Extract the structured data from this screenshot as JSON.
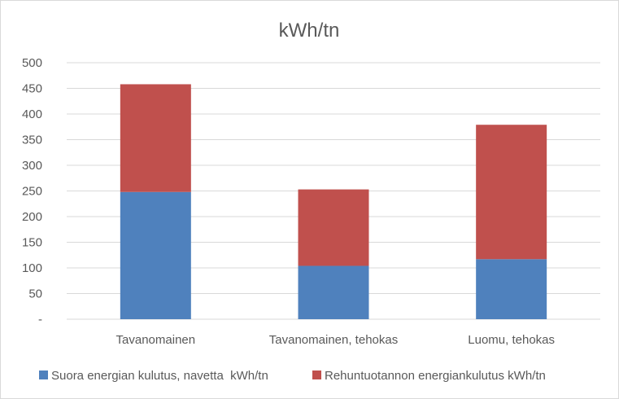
{
  "chart_data": {
    "type": "bar",
    "stacked": true,
    "title": "kWh/tn",
    "categories": [
      "Tavanomainen",
      "Tavanomainen, tehokas",
      "Luomu, tehokas"
    ],
    "series": [
      {
        "name": "Suora energian kulutus, navetta  kWh/tn",
        "color": "#4f81bd",
        "values": [
          248,
          104,
          117
        ]
      },
      {
        "name": "Rehuntuotannon energiankulutus kWh/tn",
        "color": "#c0504d",
        "values": [
          210,
          149,
          262
        ]
      }
    ],
    "ylim": [
      0,
      500
    ],
    "yticks": [
      "-",
      "50",
      "100",
      "150",
      "200",
      "250",
      "300",
      "350",
      "400",
      "450",
      "500"
    ],
    "grid": true,
    "legend_position": "bottom"
  }
}
